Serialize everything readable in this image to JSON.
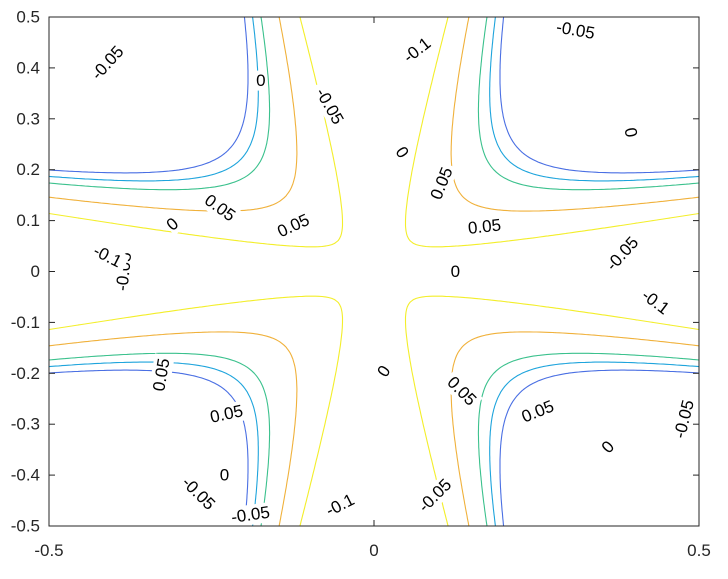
{
  "chart_data": {
    "type": "contour",
    "title": "",
    "xlabel": "",
    "ylabel": "",
    "xlim": [
      -0.5,
      0.5
    ],
    "ylim": [
      -0.5,
      0.5
    ],
    "grid": false,
    "legend": "none",
    "x_ticks": [
      "-0.5",
      "0",
      "0.5"
    ],
    "y_ticks": [
      "0.5",
      "0.4",
      "0.3",
      "0.2",
      "0.1",
      "0",
      "-0.1",
      "-0.2",
      "-0.3",
      "-0.4",
      "-0.5"
    ],
    "levels": [
      {
        "value": -0.1,
        "label": "-0.1",
        "color": "#4a6fe3"
      },
      {
        "value": -0.075,
        "label": "",
        "color": "#1ea4dc"
      },
      {
        "value": -0.05,
        "label": "-0.05",
        "color": "#3bc18d"
      },
      {
        "value": 0,
        "label": "0",
        "color": "#f0b13b"
      },
      {
        "value": 0.05,
        "label": "0.05",
        "color": "#f3ee2a"
      }
    ],
    "contour_labels": [
      {
        "text": "-0.05",
        "x": -0.41,
        "y": 0.41,
        "angle": -48
      },
      {
        "text": "-0.05",
        "x": 0.31,
        "y": 0.474,
        "angle": 10
      },
      {
        "text": "-0.05",
        "x": -0.0683,
        "y": 0.325,
        "angle": 60
      },
      {
        "text": "-0.05",
        "x": -0.27,
        "y": -0.436,
        "angle": 45
      },
      {
        "text": "-0.05",
        "x": 0.0937,
        "y": -0.44,
        "angle": -45
      },
      {
        "text": "-0.05",
        "x": -0.19,
        "y": -0.478,
        "angle": -8
      },
      {
        "text": "-0.05",
        "x": 0.477,
        "y": -0.29,
        "angle": -76
      },
      {
        "text": "-0.05",
        "x": -0.385,
        "y": 0.0,
        "angle": -84
      },
      {
        "text": "-0.05",
        "x": 0.382,
        "y": 0.035,
        "angle": -48
      },
      {
        "text": "-0.1",
        "x": 0.0661,
        "y": 0.435,
        "angle": -38
      },
      {
        "text": "-0.1",
        "x": -0.41,
        "y": 0.03,
        "angle": 27
      },
      {
        "text": "-0.1",
        "x": 0.433,
        "y": -0.06,
        "angle": 37
      },
      {
        "text": "-0.1",
        "x": -0.0521,
        "y": -0.459,
        "angle": -27
      },
      {
        "text": "0",
        "x": -0.174,
        "y": 0.375,
        "angle": 0
      },
      {
        "text": "0",
        "x": 0.0432,
        "y": 0.234,
        "angle": 56
      },
      {
        "text": "0",
        "x": 0.395,
        "y": 0.273,
        "angle": 80
      },
      {
        "text": "0",
        "x": -0.31,
        "y": 0.093,
        "angle": -40
      },
      {
        "text": "0",
        "x": 0.125,
        "y": 0.0,
        "angle": 0
      },
      {
        "text": "0",
        "x": 0.0154,
        "y": -0.196,
        "angle": -56
      },
      {
        "text": "0",
        "x": 0.36,
        "y": -0.345,
        "angle": -48
      },
      {
        "text": "0",
        "x": -0.23,
        "y": -0.4,
        "angle": 0
      },
      {
        "text": "0.05",
        "x": -0.237,
        "y": 0.125,
        "angle": 36
      },
      {
        "text": "0.05",
        "x": -0.124,
        "y": 0.09,
        "angle": -25
      },
      {
        "text": "0.05",
        "x": 0.104,
        "y": 0.173,
        "angle": -68
      },
      {
        "text": "0.05",
        "x": 0.17,
        "y": 0.088,
        "angle": -6
      },
      {
        "text": "0.05",
        "x": -0.327,
        "y": -0.203,
        "angle": -80
      },
      {
        "text": "0.05",
        "x": -0.227,
        "y": -0.28,
        "angle": -12
      },
      {
        "text": "0.05",
        "x": 0.135,
        "y": -0.235,
        "angle": 45
      },
      {
        "text": "0.05",
        "x": 0.252,
        "y": -0.275,
        "angle": -22
      }
    ]
  }
}
